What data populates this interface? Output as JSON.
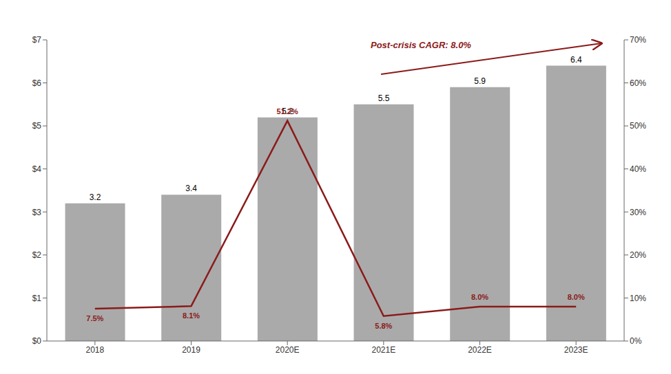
{
  "chart_data": {
    "type": "bar",
    "categories": [
      "2018",
      "2019",
      "2020E",
      "2021E",
      "2022E",
      "2023E"
    ],
    "series": [
      {
        "type": "bar",
        "color": "#aaaaaa",
        "values": [
          3.2,
          3.4,
          5.2,
          5.5,
          5.9,
          6.4
        ],
        "data_labels": true
      },
      {
        "type": "line",
        "axis": "y2",
        "color": "#8b1a1a",
        "values": [
          7.5,
          8.1,
          51.2,
          5.8,
          8.0,
          8.0
        ],
        "value_labels": [
          "7.5%",
          "8.1%",
          "51.2%",
          "5.8%",
          "8.0%",
          "8.0%"
        ],
        "data_labels": true
      }
    ],
    "ylim": [
      0,
      7
    ],
    "yticks": [
      {
        "value": 0,
        "label": "$0"
      },
      {
        "value": 1,
        "label": "$1"
      },
      {
        "value": 2,
        "label": "$2"
      },
      {
        "value": 3,
        "label": "$3"
      },
      {
        "value": 4,
        "label": "$4"
      },
      {
        "value": 5,
        "label": "$5"
      },
      {
        "value": 6,
        "label": "$6"
      },
      {
        "value": 7,
        "label": "$7"
      }
    ],
    "y2lim": [
      0,
      70
    ],
    "y2ticks": [
      {
        "value": 0,
        "label": "0%"
      },
      {
        "value": 10,
        "label": "10%"
      },
      {
        "value": 20,
        "label": "20%"
      },
      {
        "value": 30,
        "label": "30%"
      },
      {
        "value": 40,
        "label": "40%"
      },
      {
        "value": 50,
        "label": "50%"
      },
      {
        "value": 60,
        "label": "60%"
      },
      {
        "value": 70,
        "label": "70%"
      }
    ],
    "annotations": [
      {
        "text": "Post-crisis CAGR: 8.0%"
      }
    ],
    "grid": false
  }
}
